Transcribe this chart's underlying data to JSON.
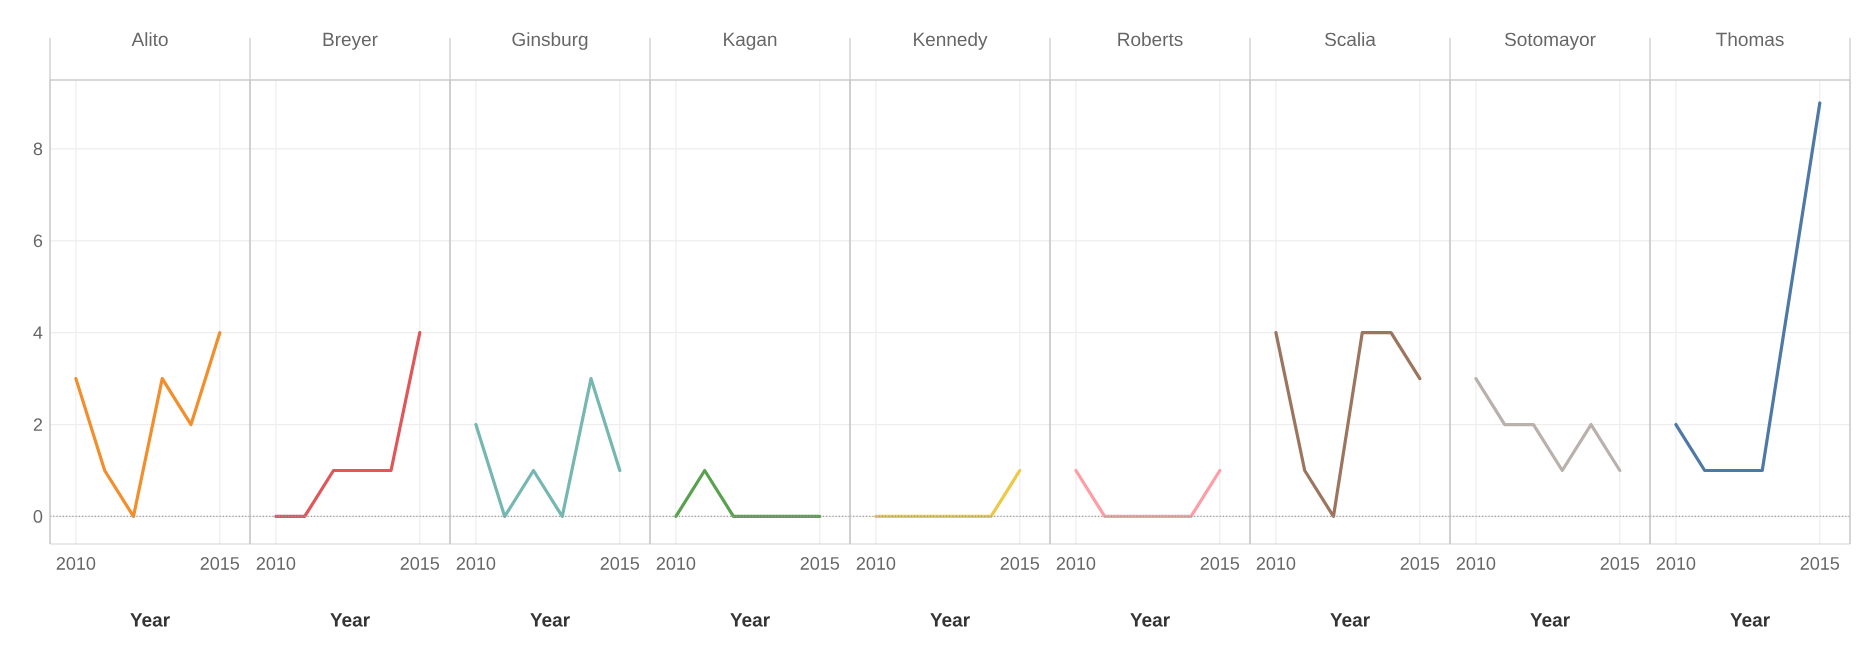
{
  "chart_data": [
    {
      "type": "line",
      "title": "Alito",
      "xlabel": "Year",
      "x": [
        2010,
        2011,
        2012,
        2013,
        2014,
        2015
      ],
      "values": [
        3,
        1,
        0,
        3,
        2,
        4
      ],
      "color": "#f28e2b",
      "xlim": [
        2009.1,
        2016.05
      ],
      "xticks": [
        2010,
        2015
      ],
      "ylim": [
        -0.6,
        9.5
      ],
      "yticks": [
        0,
        2,
        4,
        6,
        8
      ],
      "grid": true,
      "ref_lines": [
        {
          "axis": "y",
          "value": 0,
          "line_style": "dotted"
        }
      ]
    },
    {
      "type": "line",
      "title": "Breyer",
      "xlabel": "Year",
      "x": [
        2010,
        2011,
        2012,
        2013,
        2014,
        2015
      ],
      "values": [
        0,
        0,
        1,
        1,
        1,
        4
      ],
      "color": "#e15759",
      "xlim": [
        2009.1,
        2016.05
      ],
      "xticks": [
        2010,
        2015
      ],
      "ylim": [
        -0.6,
        9.5
      ],
      "yticks": [
        0,
        2,
        4,
        6,
        8
      ],
      "grid": true,
      "tick_labels": "x",
      "ref_lines": [
        {
          "axis": "y",
          "value": 0,
          "line_style": "dotted"
        }
      ]
    },
    {
      "type": "line",
      "title": "Ginsburg",
      "xlabel": "Year",
      "x": [
        2010,
        2011,
        2012,
        2013,
        2014,
        2015
      ],
      "values": [
        2,
        0,
        1,
        0,
        3,
        1
      ],
      "color": "#76b7b2",
      "xlim": [
        2009.1,
        2016.05
      ],
      "xticks": [
        2010,
        2015
      ],
      "ylim": [
        -0.6,
        9.5
      ],
      "yticks": [
        0,
        2,
        4,
        6,
        8
      ],
      "grid": true,
      "tick_labels": "x",
      "ref_lines": [
        {
          "axis": "y",
          "value": 0,
          "line_style": "dotted"
        }
      ]
    },
    {
      "type": "line",
      "title": "Kagan",
      "xlabel": "Year",
      "x": [
        2010,
        2011,
        2012,
        2013,
        2014,
        2015
      ],
      "values": [
        0,
        1,
        0,
        0,
        0,
        0
      ],
      "color": "#59a14f",
      "xlim": [
        2009.1,
        2016.05
      ],
      "xticks": [
        2010,
        2015
      ],
      "ylim": [
        -0.6,
        9.5
      ],
      "yticks": [
        0,
        2,
        4,
        6,
        8
      ],
      "grid": true,
      "tick_labels": "x",
      "ref_lines": [
        {
          "axis": "y",
          "value": 0,
          "line_style": "dotted"
        }
      ]
    },
    {
      "type": "line",
      "title": "Kennedy",
      "xlabel": "Year",
      "x": [
        2010,
        2011,
        2012,
        2013,
        2014,
        2015
      ],
      "values": [
        0,
        0,
        0,
        0,
        0,
        1
      ],
      "color": "#edc948",
      "xlim": [
        2009.1,
        2016.05
      ],
      "xticks": [
        2010,
        2015
      ],
      "ylim": [
        -0.6,
        9.5
      ],
      "yticks": [
        0,
        2,
        4,
        6,
        8
      ],
      "grid": true,
      "tick_labels": "x",
      "ref_lines": [
        {
          "axis": "y",
          "value": 0,
          "line_style": "dotted"
        }
      ]
    },
    {
      "type": "line",
      "title": "Roberts",
      "xlabel": "Year",
      "x": [
        2010,
        2011,
        2012,
        2013,
        2014,
        2015
      ],
      "values": [
        1,
        0,
        0,
        0,
        0,
        1
      ],
      "color": "#ff9da7",
      "xlim": [
        2009.1,
        2016.05
      ],
      "xticks": [
        2010,
        2015
      ],
      "ylim": [
        -0.6,
        9.5
      ],
      "yticks": [
        0,
        2,
        4,
        6,
        8
      ],
      "grid": true,
      "tick_labels": "x",
      "ref_lines": [
        {
          "axis": "y",
          "value": 0,
          "line_style": "dotted"
        }
      ]
    },
    {
      "type": "line",
      "title": "Scalia",
      "xlabel": "Year",
      "x": [
        2010,
        2011,
        2012,
        2013,
        2014,
        2015
      ],
      "values": [
        4,
        1,
        0,
        4,
        4,
        3
      ],
      "color": "#9c755f",
      "xlim": [
        2009.1,
        2016.05
      ],
      "xticks": [
        2010,
        2015
      ],
      "ylim": [
        -0.6,
        9.5
      ],
      "yticks": [
        0,
        2,
        4,
        6,
        8
      ],
      "grid": true,
      "tick_labels": "x",
      "ref_lines": [
        {
          "axis": "y",
          "value": 0,
          "line_style": "dotted"
        }
      ]
    },
    {
      "type": "line",
      "title": "Sotomayor",
      "xlabel": "Year",
      "x": [
        2010,
        2011,
        2012,
        2013,
        2014,
        2015
      ],
      "values": [
        3,
        2,
        2,
        1,
        2,
        1
      ],
      "color": "#bab0ac",
      "xlim": [
        2009.1,
        2016.05
      ],
      "xticks": [
        2010,
        2015
      ],
      "ylim": [
        -0.6,
        9.5
      ],
      "yticks": [
        0,
        2,
        4,
        6,
        8
      ],
      "grid": true,
      "tick_labels": "x",
      "ref_lines": [
        {
          "axis": "y",
          "value": 0,
          "line_style": "dotted"
        }
      ]
    },
    {
      "type": "line",
      "title": "Thomas",
      "xlabel": "Year",
      "x": [
        2010,
        2011,
        2012,
        2013,
        2014,
        2015
      ],
      "values": [
        2,
        1,
        1,
        1,
        5,
        9
      ],
      "color": "#4e79a7",
      "xlim": [
        2009.1,
        2016.05
      ],
      "xticks": [
        2010,
        2015
      ],
      "ylim": [
        -0.6,
        9.5
      ],
      "yticks": [
        0,
        2,
        4,
        6,
        8
      ],
      "grid": true,
      "tick_labels": "x",
      "ref_lines": [
        {
          "axis": "y",
          "value": 0,
          "line_style": "dotted"
        }
      ]
    }
  ]
}
